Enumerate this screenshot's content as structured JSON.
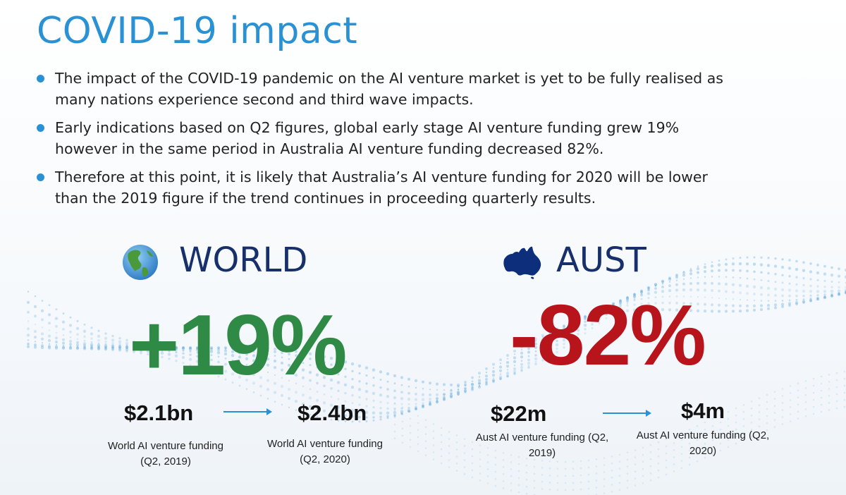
{
  "title": "COVID-19 impact",
  "bullets": [
    "The impact of the COVID-19 pandemic on the AI venture market is yet to be fully realised as many nations experience second and third wave impacts.",
    "Early indications based on Q2 figures, global early stage AI venture funding grew 19% however in the same period in Australia AI venture funding decreased 82%.",
    "Therefore at this point, it is likely that Australia’s AI venture funding for 2020 will be lower than the 2019 figure if the trend continues in proceeding quarterly results."
  ],
  "world": {
    "label": "WORLD",
    "change": "+19%",
    "from_value": "$2.1bn",
    "from_caption": "World AI venture funding (Q2, 2019)",
    "to_value": "$2.4bn",
    "to_caption": "World AI venture funding (Q2, 2020)",
    "color": "#2f8a46",
    "icon": "globe-icon"
  },
  "aust": {
    "label": "AUST",
    "change": "-82%",
    "from_value": "$22m",
    "from_caption": "Aust AI venture funding (Q2, 2019)",
    "to_value": "$4m",
    "to_caption": "Aust AI venture funding (Q2, 2020)",
    "color": "#b8141b",
    "icon": "australia-map-icon"
  },
  "colors": {
    "accent": "#2a92d4",
    "navy": "#17306b",
    "arrow": "#2a92d4"
  }
}
